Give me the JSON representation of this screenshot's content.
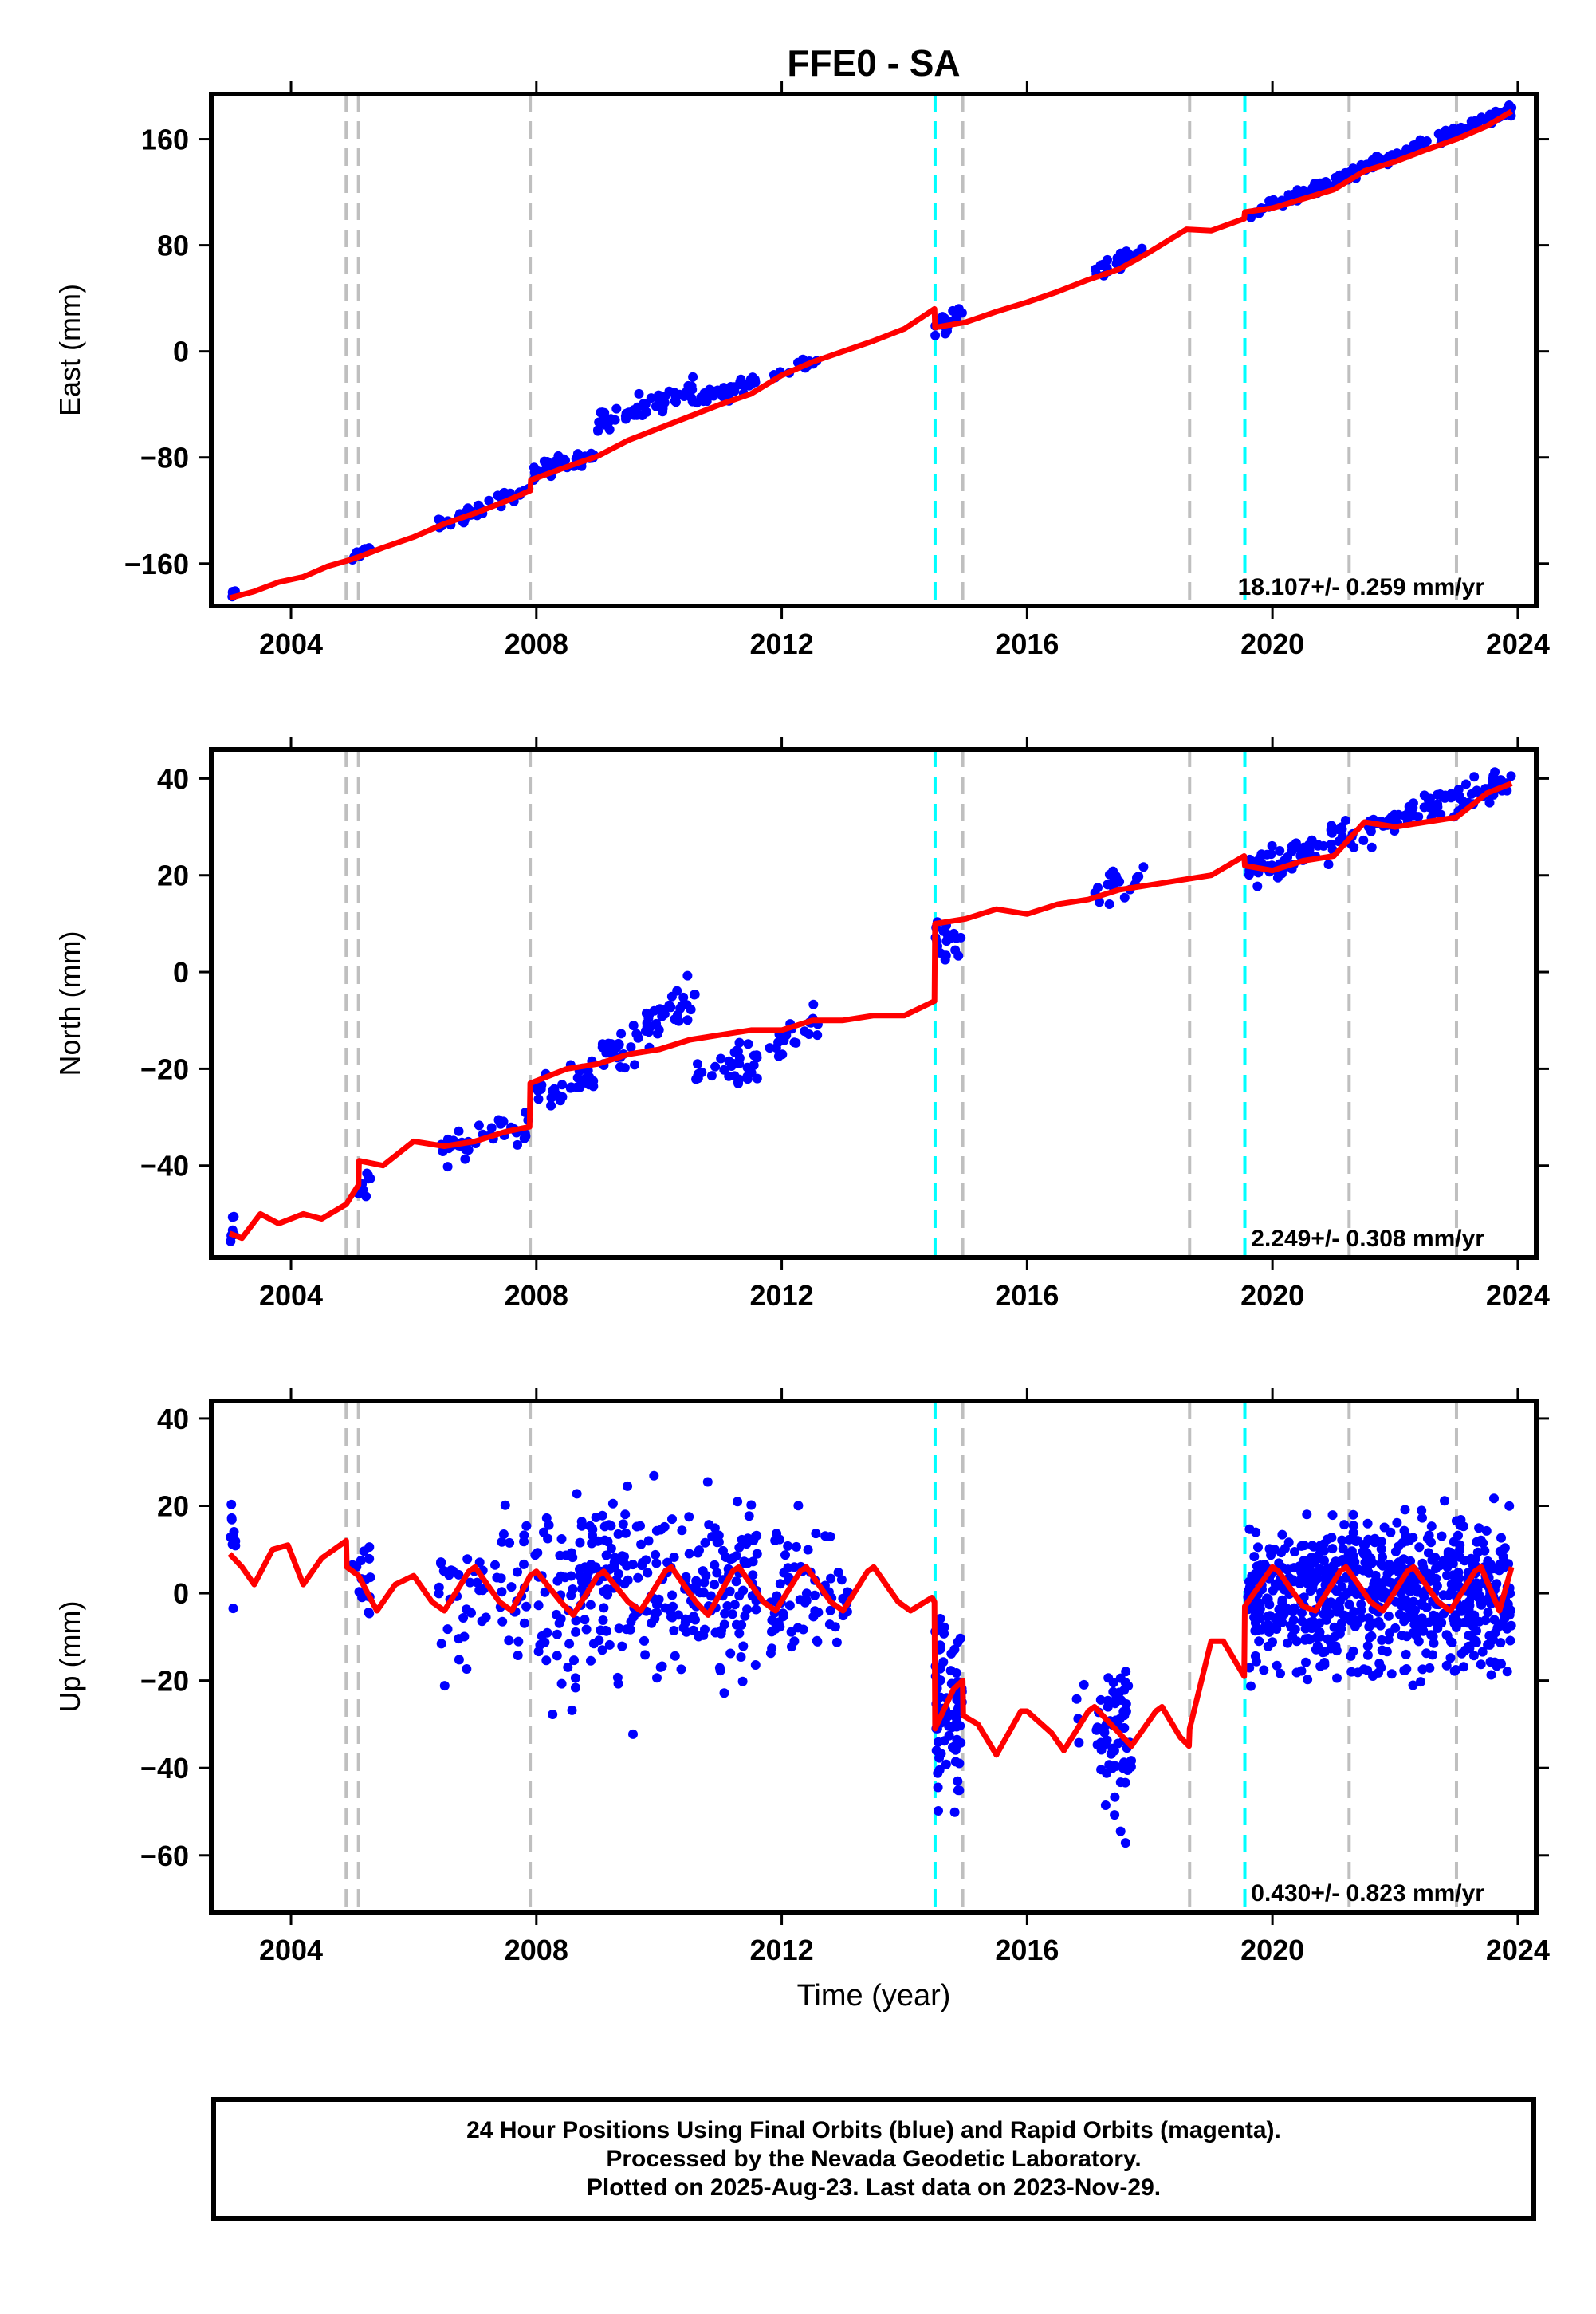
{
  "page": {
    "title": "FFE0 - SA",
    "footer_lines": [
      "24 Hour Positions Using Final Orbits (blue) and Rapid Orbits (magenta).",
      "Processed by the Nevada Geodetic Laboratory.",
      "Plotted on 2025-Aug-23. Last data on 2023-Nov-29."
    ]
  },
  "chart_data": [
    {
      "type": "scatter",
      "title": "FFE0 - SA",
      "ylabel": "East (mm)",
      "xlabel": "",
      "xlim": [
        2002.7,
        2024.3
      ],
      "ylim": [
        -192,
        194
      ],
      "xticks": [
        2004,
        2008,
        2012,
        2016,
        2020,
        2024
      ],
      "yticks": [
        -160,
        -80,
        0,
        80,
        160
      ],
      "rate_text": "18.107+/- 0.259 mm/yr",
      "colors": {
        "data": "#0000ff",
        "model": "#ff0000",
        "eq": "#bfbfbf",
        "equip": "#00ffff"
      },
      "gray_lines": [
        2004.9,
        2005.1,
        2007.9,
        2014.95,
        2018.65,
        2021.25,
        2023.0
      ],
      "cyan_lines": [
        2014.5,
        2019.55
      ],
      "model": [
        [
          2003.0,
          -186
        ],
        [
          2003.4,
          -181
        ],
        [
          2003.8,
          -174
        ],
        [
          2004.2,
          -170
        ],
        [
          2004.6,
          -162
        ],
        [
          2004.9,
          -158
        ],
        [
          2005.1,
          -155
        ],
        [
          2005.5,
          -148
        ],
        [
          2006.0,
          -140
        ],
        [
          2006.5,
          -130
        ],
        [
          2007.0,
          -122
        ],
        [
          2007.5,
          -113
        ],
        [
          2007.9,
          -105
        ],
        [
          2007.91,
          -97
        ],
        [
          2008.5,
          -87
        ],
        [
          2009.0,
          -79
        ],
        [
          2009.5,
          -67
        ],
        [
          2010.0,
          -58
        ],
        [
          2010.5,
          -49
        ],
        [
          2011.0,
          -40
        ],
        [
          2011.5,
          -32
        ],
        [
          2012.0,
          -18
        ],
        [
          2012.5,
          -8
        ],
        [
          2013.0,
          0
        ],
        [
          2013.5,
          8
        ],
        [
          2014.0,
          17
        ],
        [
          2014.49,
          32
        ],
        [
          2014.5,
          18
        ],
        [
          2015.0,
          22
        ],
        [
          2015.5,
          30
        ],
        [
          2016.0,
          37
        ],
        [
          2016.5,
          45
        ],
        [
          2017.0,
          54
        ],
        [
          2017.5,
          62
        ],
        [
          2018.0,
          75
        ],
        [
          2018.6,
          92
        ],
        [
          2019.0,
          91
        ],
        [
          2019.54,
          100
        ],
        [
          2019.55,
          105
        ],
        [
          2020.0,
          108
        ],
        [
          2020.5,
          115
        ],
        [
          2021.0,
          122
        ],
        [
          2021.5,
          136
        ],
        [
          2022.0,
          143
        ],
        [
          2022.5,
          152
        ],
        [
          2023.0,
          160
        ],
        [
          2023.5,
          170
        ],
        [
          2023.9,
          181
        ]
      ],
      "segments": [
        {
          "x0": 2003.0,
          "x1": 2003.1,
          "y0": -184,
          "y1": -182,
          "spread": 3,
          "n": 6
        },
        {
          "x0": 2005.0,
          "x1": 2005.3,
          "y0": -155,
          "y1": -148,
          "spread": 5,
          "n": 12
        },
        {
          "x0": 2006.4,
          "x1": 2007.9,
          "y0": -132,
          "y1": -103,
          "spread": 5,
          "n": 40
        },
        {
          "x0": 2007.95,
          "x1": 2009.0,
          "y0": -93,
          "y1": -78,
          "spread": 6,
          "n": 35
        },
        {
          "x0": 2009.0,
          "x1": 2010.6,
          "y0": -52,
          "y1": -29,
          "spread": 8,
          "n": 60
        },
        {
          "x0": 2010.6,
          "x1": 2011.6,
          "y0": -37,
          "y1": -21,
          "spread": 5,
          "n": 35
        },
        {
          "x0": 2011.8,
          "x1": 2012.6,
          "y0": -20,
          "y1": -6,
          "spread": 4,
          "n": 20
        },
        {
          "x0": 2014.5,
          "x1": 2014.95,
          "y0": 20,
          "y1": 27,
          "spread": 8,
          "n": 20
        },
        {
          "x0": 2017.1,
          "x1": 2017.9,
          "y0": 60,
          "y1": 76,
          "spread": 6,
          "n": 20
        },
        {
          "x0": 2019.6,
          "x1": 2023.9,
          "y0": 103,
          "y1": 182,
          "spread": 4,
          "n": 160
        }
      ]
    },
    {
      "type": "scatter",
      "ylabel": "North (mm)",
      "xlabel": "",
      "xlim": [
        2002.7,
        2024.3
      ],
      "ylim": [
        -59,
        46
      ],
      "xticks": [
        2004,
        2008,
        2012,
        2016,
        2020,
        2024
      ],
      "yticks": [
        -40,
        -20,
        0,
        20,
        40
      ],
      "rate_text": "2.249+/- 0.308 mm/yr",
      "colors": {
        "data": "#0000ff",
        "model": "#ff0000",
        "eq": "#bfbfbf",
        "equip": "#00ffff"
      },
      "gray_lines": [
        2004.9,
        2005.1,
        2007.9,
        2014.95,
        2018.65,
        2021.25,
        2023.0
      ],
      "cyan_lines": [
        2014.5,
        2019.55
      ],
      "model": [
        [
          2003.0,
          -54
        ],
        [
          2003.2,
          -55
        ],
        [
          2003.5,
          -50
        ],
        [
          2003.8,
          -52
        ],
        [
          2004.2,
          -50
        ],
        [
          2004.5,
          -51
        ],
        [
          2004.9,
          -48
        ],
        [
          2005.1,
          -44
        ],
        [
          2005.11,
          -39
        ],
        [
          2005.5,
          -40
        ],
        [
          2006.0,
          -35
        ],
        [
          2006.5,
          -36
        ],
        [
          2007.0,
          -35
        ],
        [
          2007.5,
          -33
        ],
        [
          2007.89,
          -32
        ],
        [
          2007.9,
          -23
        ],
        [
          2008.5,
          -20
        ],
        [
          2009.0,
          -19
        ],
        [
          2009.5,
          -17
        ],
        [
          2010.0,
          -16
        ],
        [
          2010.5,
          -14
        ],
        [
          2011.0,
          -13
        ],
        [
          2011.5,
          -12
        ],
        [
          2012.0,
          -12
        ],
        [
          2012.5,
          -10
        ],
        [
          2013.0,
          -10
        ],
        [
          2013.5,
          -9
        ],
        [
          2014.0,
          -9
        ],
        [
          2014.49,
          -6
        ],
        [
          2014.5,
          10
        ],
        [
          2015.0,
          11
        ],
        [
          2015.5,
          13
        ],
        [
          2016.0,
          12
        ],
        [
          2016.5,
          14
        ],
        [
          2017.0,
          15
        ],
        [
          2017.5,
          17
        ],
        [
          2018.0,
          18
        ],
        [
          2018.5,
          19
        ],
        [
          2019.0,
          20
        ],
        [
          2019.54,
          24
        ],
        [
          2019.55,
          22
        ],
        [
          2020.0,
          21
        ],
        [
          2020.5,
          23
        ],
        [
          2021.0,
          24
        ],
        [
          2021.5,
          31
        ],
        [
          2022.0,
          30
        ],
        [
          2022.5,
          31
        ],
        [
          2023.0,
          32
        ],
        [
          2023.5,
          37
        ],
        [
          2023.9,
          39
        ]
      ],
      "segments": [
        {
          "x0": 2003.0,
          "x1": 2003.1,
          "y0": -54,
          "y1": -52,
          "spread": 3,
          "n": 6
        },
        {
          "x0": 2005.0,
          "x1": 2005.3,
          "y0": -46,
          "y1": -42,
          "spread": 3,
          "n": 10
        },
        {
          "x0": 2006.4,
          "x1": 2007.9,
          "y0": -37,
          "y1": -31,
          "spread": 3,
          "n": 40
        },
        {
          "x0": 2007.95,
          "x1": 2009.0,
          "y0": -25,
          "y1": -22,
          "spread": 3,
          "n": 35
        },
        {
          "x0": 2009.0,
          "x1": 2010.6,
          "y0": -18,
          "y1": -5,
          "spread": 4,
          "n": 60
        },
        {
          "x0": 2010.6,
          "x1": 2011.6,
          "y0": -21,
          "y1": -18,
          "spread": 3,
          "n": 35
        },
        {
          "x0": 2011.8,
          "x1": 2012.6,
          "y0": -15,
          "y1": -11,
          "spread": 3,
          "n": 20
        },
        {
          "x0": 2014.5,
          "x1": 2014.95,
          "y0": 8,
          "y1": 6,
          "spread": 4,
          "n": 20
        },
        {
          "x0": 2017.1,
          "x1": 2017.9,
          "y0": 15,
          "y1": 21,
          "spread": 3,
          "n": 20
        },
        {
          "x0": 2019.6,
          "x1": 2023.9,
          "y0": 21,
          "y1": 40,
          "spread": 3,
          "n": 160
        }
      ]
    },
    {
      "type": "scatter",
      "ylabel": "Up (mm)",
      "xlabel": "Time (year)",
      "xlim": [
        2002.7,
        2024.3
      ],
      "ylim": [
        -73,
        44
      ],
      "xticks": [
        2004,
        2008,
        2012,
        2016,
        2020,
        2024
      ],
      "yticks": [
        -60,
        -40,
        -20,
        0,
        20,
        40
      ],
      "rate_text": "0.430+/- 0.823 mm/yr",
      "colors": {
        "data": "#0000ff",
        "model": "#ff0000",
        "eq": "#bfbfbf",
        "equip": "#00ffff"
      },
      "gray_lines": [
        2004.9,
        2005.1,
        2007.9,
        2014.95,
        2018.65,
        2021.25,
        2023.0
      ],
      "cyan_lines": [
        2014.5,
        2019.55
      ],
      "model": [
        [
          2003.0,
          9
        ],
        [
          2003.2,
          6
        ],
        [
          2003.4,
          2
        ],
        [
          2003.7,
          10
        ],
        [
          2003.95,
          11
        ],
        [
          2004.2,
          2
        ],
        [
          2004.5,
          8
        ],
        [
          2004.9,
          12
        ],
        [
          2004.91,
          6
        ],
        [
          2005.1,
          4
        ],
        [
          2005.4,
          -4
        ],
        [
          2005.7,
          2
        ],
        [
          2006.0,
          4
        ],
        [
          2006.3,
          -2
        ],
        [
          2006.5,
          -4
        ],
        [
          2006.9,
          5
        ],
        [
          2007.0,
          6
        ],
        [
          2007.4,
          -2
        ],
        [
          2007.6,
          -4
        ],
        [
          2007.9,
          4
        ],
        [
          2008.0,
          5
        ],
        [
          2008.4,
          -2
        ],
        [
          2008.6,
          -5
        ],
        [
          2009.0,
          4
        ],
        [
          2009.1,
          5
        ],
        [
          2009.5,
          -2
        ],
        [
          2009.7,
          -4
        ],
        [
          2010.1,
          5
        ],
        [
          2010.2,
          6
        ],
        [
          2010.6,
          -2
        ],
        [
          2010.8,
          -5
        ],
        [
          2011.2,
          5
        ],
        [
          2011.3,
          6
        ],
        [
          2011.7,
          -2
        ],
        [
          2011.9,
          -4
        ],
        [
          2012.3,
          5
        ],
        [
          2012.4,
          6
        ],
        [
          2012.8,
          -2
        ],
        [
          2013.0,
          -4
        ],
        [
          2013.4,
          5
        ],
        [
          2013.5,
          6
        ],
        [
          2013.9,
          -2
        ],
        [
          2014.1,
          -4
        ],
        [
          2014.45,
          -1
        ],
        [
          2014.49,
          -2
        ],
        [
          2014.5,
          -31
        ],
        [
          2014.8,
          -22
        ],
        [
          2014.95,
          -20
        ],
        [
          2014.96,
          -28
        ],
        [
          2015.2,
          -30
        ],
        [
          2015.5,
          -37
        ],
        [
          2015.9,
          -27
        ],
        [
          2016.0,
          -27
        ],
        [
          2016.4,
          -32
        ],
        [
          2016.6,
          -36
        ],
        [
          2017.0,
          -27
        ],
        [
          2017.1,
          -26
        ],
        [
          2017.5,
          -32
        ],
        [
          2017.7,
          -35
        ],
        [
          2018.1,
          -27
        ],
        [
          2018.2,
          -26
        ],
        [
          2018.5,
          -33
        ],
        [
          2018.64,
          -35
        ],
        [
          2018.65,
          -31
        ],
        [
          2019.0,
          -11
        ],
        [
          2019.2,
          -11
        ],
        [
          2019.54,
          -19
        ],
        [
          2019.55,
          -3
        ],
        [
          2020.0,
          6
        ],
        [
          2020.1,
          5
        ],
        [
          2020.5,
          -3
        ],
        [
          2020.7,
          -4
        ],
        [
          2021.1,
          5
        ],
        [
          2021.2,
          6
        ],
        [
          2021.6,
          -2
        ],
        [
          2021.8,
          -4
        ],
        [
          2022.2,
          5
        ],
        [
          2022.3,
          6
        ],
        [
          2022.7,
          -2
        ],
        [
          2022.9,
          -4
        ],
        [
          2023.3,
          5
        ],
        [
          2023.4,
          6
        ],
        [
          2023.7,
          -4
        ],
        [
          2023.9,
          6
        ]
      ],
      "segments": [
        {
          "x0": 2003.0,
          "x1": 2003.1,
          "y0": 10,
          "y1": 8,
          "spread": 10,
          "n": 10
        },
        {
          "x0": 2005.0,
          "x1": 2005.3,
          "y0": 4,
          "y1": 2,
          "spread": 8,
          "n": 15
        },
        {
          "x0": 2006.4,
          "x1": 2007.9,
          "y0": 0,
          "y1": 2,
          "spread": 14,
          "n": 60
        },
        {
          "x0": 2007.95,
          "x1": 2010.6,
          "y0": 1,
          "y1": 2,
          "spread": 18,
          "n": 200
        },
        {
          "x0": 2010.6,
          "x1": 2011.6,
          "y0": 2,
          "y1": 1,
          "spread": 16,
          "n": 90
        },
        {
          "x0": 2011.8,
          "x1": 2012.6,
          "y0": 0,
          "y1": 1,
          "spread": 14,
          "n": 50
        },
        {
          "x0": 2012.7,
          "x1": 2013.1,
          "y0": 0,
          "y1": 0,
          "spread": 10,
          "n": 20
        },
        {
          "x0": 2014.5,
          "x1": 2014.95,
          "y0": -26,
          "y1": -28,
          "spread": 18,
          "n": 80
        },
        {
          "x0": 2016.8,
          "x1": 2017.2,
          "y0": -30,
          "y1": -28,
          "spread": 8,
          "n": 8
        },
        {
          "x0": 2017.2,
          "x1": 2017.7,
          "y0": -35,
          "y1": -32,
          "spread": 16,
          "n": 60
        },
        {
          "x0": 2019.6,
          "x1": 2023.9,
          "y0": 0,
          "y1": 0,
          "spread": 14,
          "n": 700
        }
      ]
    }
  ]
}
